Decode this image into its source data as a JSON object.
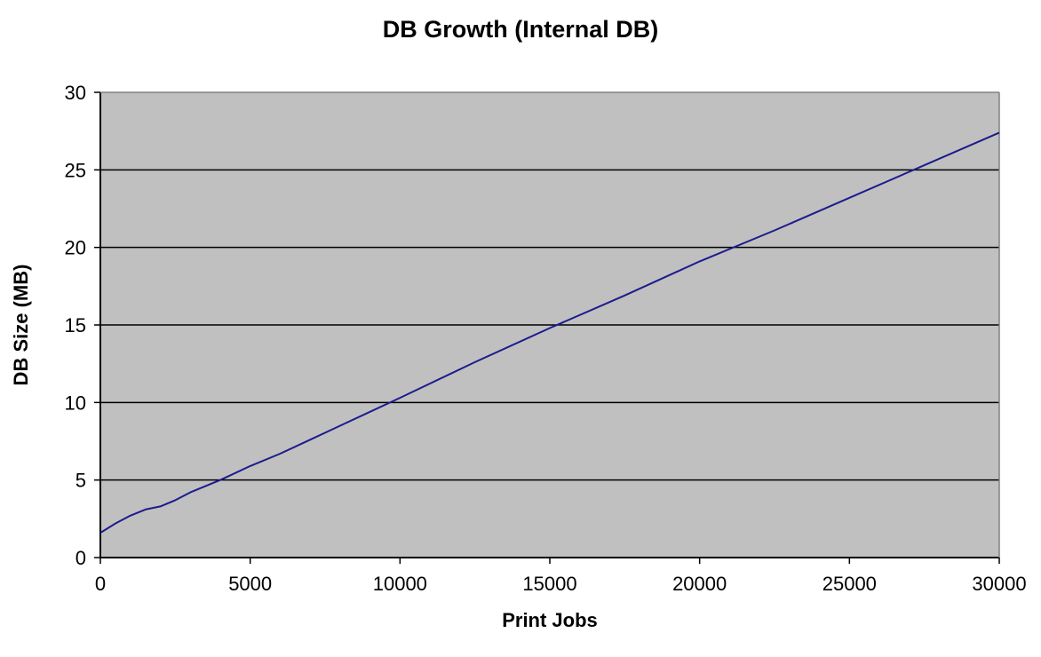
{
  "chart_data": {
    "type": "line",
    "title": "DB Growth (Internal DB)",
    "xlabel": "Print Jobs",
    "ylabel": "DB Size (MB)",
    "xlim": [
      0,
      30000
    ],
    "ylim": [
      0,
      30
    ],
    "x_ticks": [
      "0",
      "5000",
      "10000",
      "15000",
      "20000",
      "25000",
      "30000"
    ],
    "y_ticks": [
      "0",
      "5",
      "10",
      "15",
      "20",
      "25",
      "30"
    ],
    "grid": "horizontal",
    "legend": "none",
    "colors": {
      "plot_background": "#c0c0c0",
      "line": "#1c1c8c",
      "gridline": "#000000"
    },
    "series": [
      {
        "x": [
          0,
          500,
          1000,
          1500,
          2000,
          2500,
          3000,
          4000,
          5000,
          6000,
          7000,
          8000,
          9000,
          10000,
          12500,
          15000,
          17500,
          20000,
          22500,
          25000,
          27500,
          30000
        ],
        "values": [
          1.6,
          2.2,
          2.7,
          3.1,
          3.3,
          3.7,
          4.2,
          5.0,
          5.9,
          6.7,
          7.6,
          8.5,
          9.4,
          10.3,
          12.6,
          14.8,
          16.9,
          19.1,
          21.1,
          23.2,
          25.3,
          27.4
        ]
      }
    ]
  }
}
